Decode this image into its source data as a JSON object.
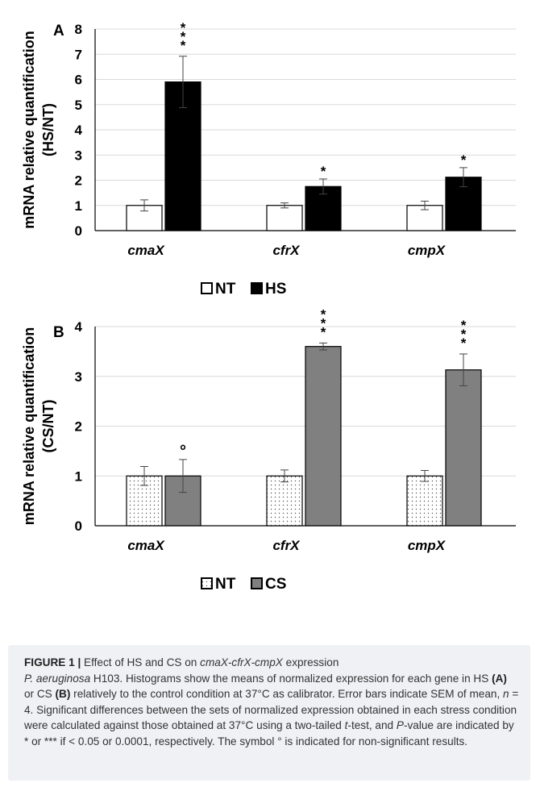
{
  "chart_data": [
    {
      "type": "bar",
      "panel": "A",
      "ylabel": [
        "mRNA relative  quantification",
        "(HS/NT)"
      ],
      "ylim": [
        0,
        8
      ],
      "yticks": [
        "0",
        "1",
        "2",
        "3",
        "4",
        "5",
        "6",
        "7",
        "8"
      ],
      "grid": true,
      "categories": [
        "cmaX",
        "cfrX",
        "cmpX"
      ],
      "series": [
        {
          "name": "NT",
          "values": [
            1.0,
            1.0,
            1.0
          ],
          "errors": [
            0.22,
            0.1,
            0.17
          ],
          "fill": "#ffffff",
          "pattern": "none",
          "markers": [
            "",
            "",
            ""
          ]
        },
        {
          "name": "HS",
          "values": [
            5.9,
            1.75,
            2.12
          ],
          "errors": [
            1.02,
            0.3,
            0.38
          ],
          "fill": "#000000",
          "pattern": "none",
          "markers": [
            "***",
            "*",
            "*"
          ]
        }
      ],
      "legend": {
        "position": "bottom",
        "items": [
          "NT",
          "HS"
        ]
      }
    },
    {
      "type": "bar",
      "panel": "B",
      "ylabel": [
        "mRNA relative  quantification",
        "(CS/NT)"
      ],
      "ylim": [
        0,
        4
      ],
      "yticks": [
        "0",
        "1",
        "2",
        "3",
        "4"
      ],
      "grid": true,
      "categories": [
        "cmaX",
        "cfrX",
        "cmpX"
      ],
      "series": [
        {
          "name": "NT",
          "values": [
            1.0,
            1.0,
            1.0
          ],
          "errors": [
            0.19,
            0.12,
            0.11
          ],
          "fill": "#ffffff",
          "pattern": "dots",
          "markers": [
            "",
            "",
            ""
          ]
        },
        {
          "name": "CS",
          "values": [
            1.0,
            3.6,
            3.13
          ],
          "errors": [
            0.33,
            0.07,
            0.32
          ],
          "fill": "#808080",
          "pattern": "none",
          "markers": [
            "°",
            "***",
            "***"
          ]
        }
      ],
      "legend": {
        "position": "bottom",
        "items": [
          "NT",
          "CS"
        ]
      }
    }
  ],
  "caption": {
    "label": "FIGURE 1 |",
    "segments": [
      {
        "t": " Effect of HS and CS on ",
        "s": "n"
      },
      {
        "t": "cmaX-cfrX-cmpX",
        "s": "i"
      },
      {
        "t": " expression ",
        "s": "n"
      },
      {
        "br": true
      },
      {
        "t": "P. aeruginosa",
        "s": "i"
      },
      {
        "t": " H103. Histograms show the means of normalized expression for each gene in HS ",
        "s": "n"
      },
      {
        "t": "(A)",
        "s": "b"
      },
      {
        "t": " or CS ",
        "s": "n"
      },
      {
        "t": "(B)",
        "s": "b"
      },
      {
        "t": " relatively to the control condition at 37°C as calibrator. Error bars indicate SEM of mean, ",
        "s": "n"
      },
      {
        "t": "n",
        "s": "i"
      },
      {
        "t": " = 4. Significant differences between the sets of normalized expression obtained in each stress condition were calculated against those obtained at 37°C using a two-tailed ",
        "s": "n"
      },
      {
        "t": "t",
        "s": "i"
      },
      {
        "t": "-test, and ",
        "s": "n"
      },
      {
        "t": "P",
        "s": "i"
      },
      {
        "t": "-value are indicated by * or *** if < 0.05 or 0.0001, respectively. The symbol ° is indicated for non-significant results.",
        "s": "n"
      }
    ]
  },
  "colors": {
    "grid": "#d9d9d9",
    "axis": "#000000",
    "text": "#000000",
    "caption_bg": "#f0f1f5"
  }
}
